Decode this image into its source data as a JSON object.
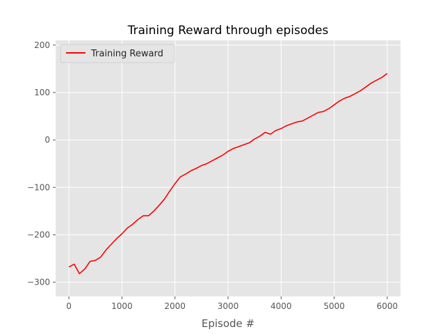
{
  "chart_data": {
    "type": "line",
    "title": "Training Reward through episodes",
    "xlabel": "Episode #",
    "ylabel": "",
    "xlim": [
      -250,
      6250
    ],
    "ylim": [
      -330,
      210
    ],
    "x_ticks": [
      0,
      1000,
      2000,
      3000,
      4000,
      5000,
      6000
    ],
    "y_ticks": [
      -300,
      -200,
      -100,
      0,
      100,
      200
    ],
    "x_tick_labels": [
      "0",
      "1000",
      "2000",
      "3000",
      "4000",
      "5000",
      "6000"
    ],
    "y_tick_labels": [
      "−300",
      "−200",
      "−100",
      "0",
      "100",
      "200"
    ],
    "grid": true,
    "legend_position": "upper-left",
    "series": [
      {
        "name": "Training Reward",
        "color": "#ff0000",
        "x": [
          0,
          100,
          200,
          300,
          400,
          500,
          600,
          700,
          800,
          900,
          1000,
          1100,
          1200,
          1300,
          1400,
          1500,
          1600,
          1700,
          1800,
          1900,
          2000,
          2100,
          2200,
          2300,
          2400,
          2500,
          2600,
          2700,
          2800,
          2900,
          3000,
          3100,
          3200,
          3300,
          3400,
          3500,
          3600,
          3700,
          3800,
          3900,
          4000,
          4100,
          4200,
          4300,
          4400,
          4500,
          4600,
          4700,
          4800,
          4900,
          5000,
          5100,
          5200,
          5300,
          5400,
          5500,
          5600,
          5700,
          5800,
          5900,
          6000
        ],
        "y": [
          -268,
          -262,
          -282,
          -272,
          -256,
          -254,
          -247,
          -232,
          -220,
          -208,
          -198,
          -186,
          -178,
          -168,
          -160,
          -160,
          -150,
          -138,
          -125,
          -108,
          -92,
          -78,
          -72,
          -65,
          -60,
          -54,
          -50,
          -44,
          -38,
          -32,
          -24,
          -18,
          -14,
          -10,
          -6,
          2,
          8,
          16,
          12,
          20,
          24,
          30,
          34,
          38,
          40,
          46,
          52,
          58,
          60,
          66,
          74,
          82,
          88,
          92,
          98,
          104,
          112,
          120,
          126,
          132,
          140
        ]
      }
    ]
  }
}
